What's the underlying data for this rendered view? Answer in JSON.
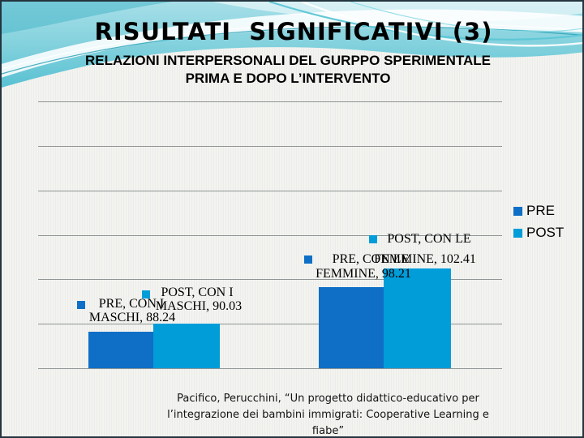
{
  "slide": {
    "title": "RISULTATI  SIGNIFICATIVI (3)",
    "subtitle": {
      "line1": "RELAZIONI INTERPERSONALI DEL GURPPO SPERIMENTALE",
      "line2": "PRIMA E DOPO L’INTERVENTO"
    },
    "citation": {
      "line1": "Pacifico, Perucchini, “Un progetto didattico-educativo per",
      "line2": "l’integrazione dei bambini immigrati: Cooperative Learning e",
      "line3": "fiabe”"
    }
  },
  "theme_colors": {
    "accent_pre": "#0F6FC6",
    "accent_post": "#009DD9",
    "header_teal": "#6fcbd9",
    "gridline_gray": "#8f9695"
  },
  "chart_data": {
    "type": "bar",
    "title": "",
    "xlabel": "",
    "ylabel": "",
    "categories": [
      "CON I MASCHI",
      "CON LE FEMMINE"
    ],
    "series": [
      {
        "name": "PRE",
        "color": "#0F6FC6",
        "values": [
          88.24,
          98.21
        ]
      },
      {
        "name": "POST",
        "color": "#009DD9",
        "values": [
          90.03,
          102.41
        ]
      }
    ],
    "ylim": [
      80,
      140
    ],
    "gridline_interval": 10,
    "grid": true,
    "axis_tick_labels_visible": false,
    "legend_position": "right",
    "legend": [
      "PRE",
      "POST"
    ],
    "data_labels": [
      {
        "series": "PRE",
        "lines": [
          "PRE, CON I",
          "MASCHI, 88.24"
        ],
        "color": "#0F6FC6"
      },
      {
        "series": "POST",
        "lines": [
          "POST, CON I",
          "MASCHI, 90.03"
        ],
        "color": "#009DD9"
      },
      {
        "series": "PRE",
        "lines": [
          "PRE, CON LE",
          "FEMMINE, 98.21"
        ],
        "color": "#0F6FC6"
      },
      {
        "series": "POST",
        "lines": [
          "POST, CON LE",
          "FEMMINE, 102.41"
        ],
        "color": "#009DD9"
      }
    ]
  }
}
